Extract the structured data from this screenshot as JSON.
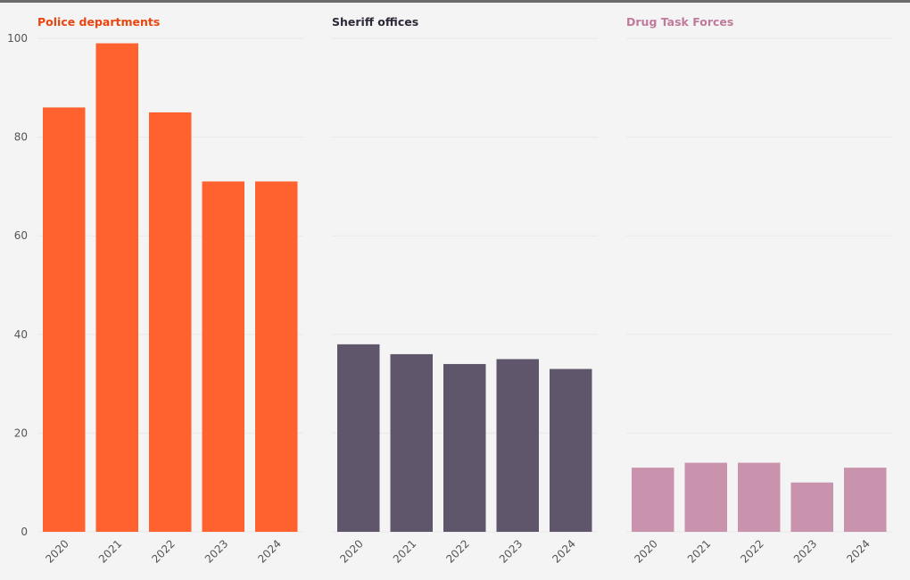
{
  "chart_data": {
    "type": "bar",
    "layout": "small-multiples",
    "shared_y_axis": true,
    "ylim": [
      0,
      100
    ],
    "yticks": [
      0,
      20,
      40,
      60,
      80,
      100
    ],
    "grid": true,
    "categories": [
      "2020",
      "2021",
      "2022",
      "2023",
      "2024"
    ],
    "series": [
      {
        "name": "Police departments",
        "color": "#ff622e",
        "values": [
          86,
          99,
          85,
          71,
          71
        ]
      },
      {
        "name": "Sheriff offices",
        "color": "#5f566b",
        "values": [
          38,
          36,
          34,
          35,
          33
        ]
      },
      {
        "name": "Drug Task Forces",
        "color": "#ca93ad",
        "values": [
          13,
          14,
          14,
          10,
          13
        ]
      }
    ]
  },
  "colors": {
    "background": "#f4f4f4",
    "grid": "#e8e8e8",
    "axis_text": "#555555",
    "police_title": "#e8450f",
    "sheriff_title": "#2e2838",
    "task_force_title": "#c07a9a"
  }
}
